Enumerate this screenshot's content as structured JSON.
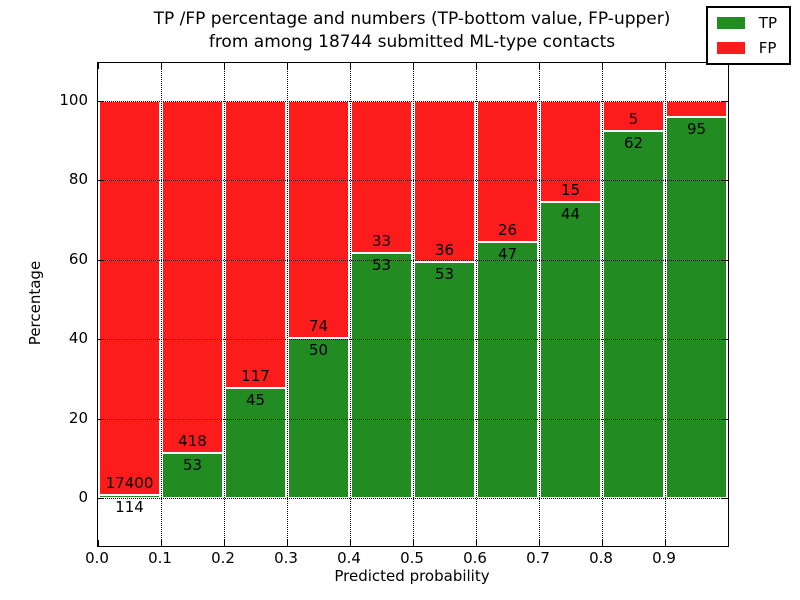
{
  "chart_data": {
    "type": "bar",
    "stacked": true,
    "title_line1": "TP /FP percentage and numbers (TP-bottom value, FP-upper)",
    "title_line2": "from among 18744 submitted ML-type contacts",
    "xlabel": "Predicted probability",
    "ylabel": "Percentage",
    "x_ticks": [
      "0.0",
      "0.1",
      "0.2",
      "0.3",
      "0.4",
      "0.5",
      "0.6",
      "0.7",
      "0.8",
      "0.9"
    ],
    "y_ticks": [
      0,
      20,
      40,
      60,
      80,
      100
    ],
    "ylim": [
      -12,
      110
    ],
    "xlim": [
      0.0,
      1.0
    ],
    "grid": true,
    "legend_position": "upper right",
    "legend": [
      {
        "label": "TP",
        "color": "#228b22"
      },
      {
        "label": "FP",
        "color": "#fc1c1c"
      }
    ],
    "colors": {
      "tp": "#228b22",
      "fp": "#fc1c1c"
    },
    "bins": [
      {
        "x_start": 0.0,
        "x_end": 0.1,
        "tp_count": 114,
        "fp_count": 17400,
        "tp_pct": 0.65,
        "fp_pct": 99.35
      },
      {
        "x_start": 0.1,
        "x_end": 0.2,
        "tp_count": 53,
        "fp_count": 418,
        "tp_pct": 11.25,
        "fp_pct": 88.75
      },
      {
        "x_start": 0.2,
        "x_end": 0.3,
        "tp_count": 45,
        "fp_count": 117,
        "tp_pct": 27.78,
        "fp_pct": 72.22
      },
      {
        "x_start": 0.3,
        "x_end": 0.4,
        "tp_count": 50,
        "fp_count": 74,
        "tp_pct": 40.32,
        "fp_pct": 59.68
      },
      {
        "x_start": 0.4,
        "x_end": 0.5,
        "tp_count": 53,
        "fp_count": 33,
        "tp_pct": 61.63,
        "fp_pct": 38.37
      },
      {
        "x_start": 0.5,
        "x_end": 0.6,
        "tp_count": 53,
        "fp_count": 36,
        "tp_pct": 59.55,
        "fp_pct": 40.45
      },
      {
        "x_start": 0.6,
        "x_end": 0.7,
        "tp_count": 47,
        "fp_count": 26,
        "tp_pct": 64.38,
        "fp_pct": 35.62
      },
      {
        "x_start": 0.7,
        "x_end": 0.8,
        "tp_count": 44,
        "fp_count": 15,
        "tp_pct": 74.58,
        "fp_pct": 25.42
      },
      {
        "x_start": 0.8,
        "x_end": 0.9,
        "tp_count": 62,
        "fp_count": 5,
        "tp_pct": 92.54,
        "fp_pct": 7.46
      },
      {
        "x_start": 0.9,
        "x_end": 1.0,
        "tp_count": 95,
        "fp_count": null,
        "tp_pct": 95.96,
        "fp_pct": 4.04
      }
    ]
  }
}
